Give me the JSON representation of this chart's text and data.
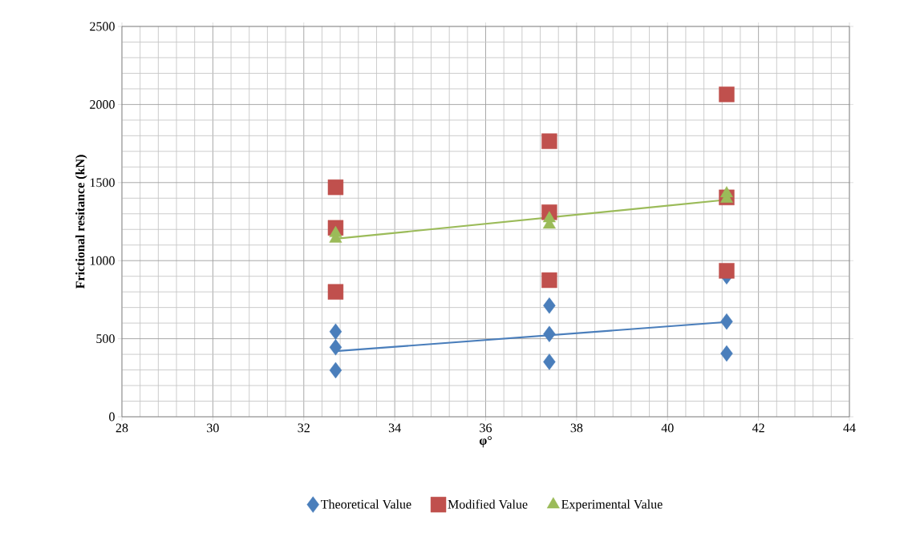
{
  "chart_data": {
    "type": "scatter",
    "xlabel": "φ°",
    "ylabel": "Frictional resitance (kN)",
    "xlim": [
      28,
      44
    ],
    "xticks": [
      28,
      30,
      32,
      34,
      36,
      38,
      40,
      42,
      44
    ],
    "ylim": [
      0,
      2500
    ],
    "yticks": [
      0,
      500,
      1000,
      1500,
      2000,
      2500
    ],
    "grid": true,
    "legend": "bottom",
    "series": [
      {
        "name": "Theoretical Value",
        "color": "#4a7ebb",
        "marker": "diamond",
        "x": [
          32.7,
          32.7,
          32.7,
          37.4,
          37.4,
          37.4,
          41.3,
          41.3,
          41.3
        ],
        "values": [
          545,
          445,
          298,
          712,
          530,
          352,
          900,
          610,
          405
        ]
      },
      {
        "name": "Modified Value",
        "color": "#c0504d",
        "marker": "square",
        "x": [
          32.7,
          32.7,
          32.7,
          37.4,
          37.4,
          37.4,
          41.3,
          41.3,
          41.3
        ],
        "values": [
          1470,
          1210,
          800,
          1765,
          1310,
          875,
          2065,
          1405,
          935
        ]
      },
      {
        "name": "Experimental Value",
        "color": "#9bbb59",
        "marker": "triangle",
        "x": [
          32.7,
          32.7,
          37.4,
          37.4,
          41.3,
          41.3
        ],
        "values": [
          1175,
          1140,
          1270,
          1230,
          1430,
          1395
        ]
      },
      {
        "type": "line",
        "color": "#4a7ebb",
        "marker": "none",
        "x": [
          32.7,
          41.3
        ],
        "values": [
          420,
          607
        ]
      },
      {
        "type": "line",
        "color": "#9bbb59",
        "marker": "none",
        "x": [
          32.7,
          41.3
        ],
        "values": [
          1140,
          1390
        ]
      }
    ]
  }
}
